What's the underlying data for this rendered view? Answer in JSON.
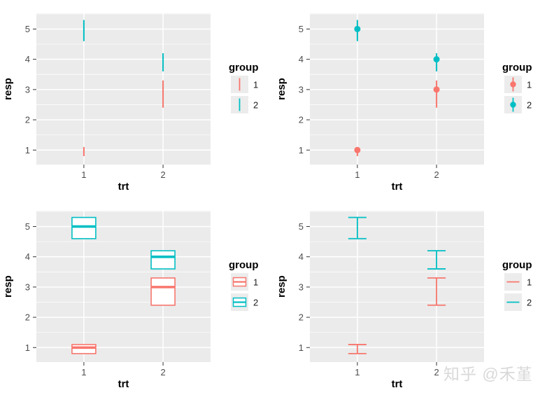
{
  "page": {
    "background": "#ffffff"
  },
  "watermark": {
    "text": "知乎 @禾堇",
    "color": "#d9d9d9"
  },
  "palette": {
    "group1": "#F8766D",
    "group2": "#00BFC4",
    "panel_bg": "#EBEBEB",
    "legend_key_bg": "#ECECEC",
    "grid": "#FFFFFF",
    "tick_mark": "#333333",
    "tick_text": "#4D4D4D",
    "title_text": "#000000",
    "crossbar_fill": "#FFFFFF"
  },
  "chart_data": [
    {
      "type": "linerange",
      "title": "",
      "xlabel": "trt",
      "ylabel": "resp",
      "x_categories": [
        "1",
        "2"
      ],
      "y_ticks": [
        "1",
        "2",
        "3",
        "4",
        "5"
      ],
      "ylim": [
        0.52,
        5.52
      ],
      "x_domain": [
        0.4,
        2.6
      ],
      "grid": "on",
      "legend": {
        "title": "group",
        "position": "right",
        "entries": [
          {
            "label": "1",
            "color": "#F8766D"
          },
          {
            "label": "2",
            "color": "#00BFC4"
          }
        ]
      },
      "points": [
        {
          "trt": "1",
          "resp": 1,
          "group": "1",
          "lower": 0.8,
          "upper": 1.1
        },
        {
          "trt": "1",
          "resp": 5,
          "group": "2",
          "lower": 4.6,
          "upper": 5.3
        },
        {
          "trt": "2",
          "resp": 3,
          "group": "1",
          "lower": 2.4,
          "upper": 3.3
        },
        {
          "trt": "2",
          "resp": 4,
          "group": "2",
          "lower": 3.6,
          "upper": 4.2
        }
      ]
    },
    {
      "type": "pointrange",
      "title": "",
      "xlabel": "trt",
      "ylabel": "resp",
      "x_categories": [
        "1",
        "2"
      ],
      "y_ticks": [
        "1",
        "2",
        "3",
        "4",
        "5"
      ],
      "ylim": [
        0.52,
        5.52
      ],
      "x_domain": [
        0.4,
        2.6
      ],
      "grid": "on",
      "legend": {
        "title": "group",
        "position": "right",
        "entries": [
          {
            "label": "1",
            "color": "#F8766D"
          },
          {
            "label": "2",
            "color": "#00BFC4"
          }
        ]
      },
      "points": [
        {
          "trt": "1",
          "resp": 1,
          "group": "1",
          "lower": 0.8,
          "upper": 1.1
        },
        {
          "trt": "1",
          "resp": 5,
          "group": "2",
          "lower": 4.6,
          "upper": 5.3
        },
        {
          "trt": "2",
          "resp": 3,
          "group": "1",
          "lower": 2.4,
          "upper": 3.3
        },
        {
          "trt": "2",
          "resp": 4,
          "group": "2",
          "lower": 3.6,
          "upper": 4.2
        }
      ]
    },
    {
      "type": "crossbar",
      "title": "",
      "xlabel": "trt",
      "ylabel": "resp",
      "x_categories": [
        "1",
        "2"
      ],
      "y_ticks": [
        "1",
        "2",
        "3",
        "4",
        "5"
      ],
      "ylim": [
        0.52,
        5.52
      ],
      "x_domain": [
        0.4,
        2.6
      ],
      "grid": "on",
      "legend": {
        "title": "group",
        "position": "right",
        "entries": [
          {
            "label": "1",
            "color": "#F8766D"
          },
          {
            "label": "2",
            "color": "#00BFC4"
          }
        ]
      },
      "points": [
        {
          "trt": "1",
          "resp": 1,
          "group": "1",
          "lower": 0.8,
          "upper": 1.1
        },
        {
          "trt": "1",
          "resp": 5,
          "group": "2",
          "lower": 4.6,
          "upper": 5.3
        },
        {
          "trt": "2",
          "resp": 3,
          "group": "1",
          "lower": 2.4,
          "upper": 3.3
        },
        {
          "trt": "2",
          "resp": 4,
          "group": "2",
          "lower": 3.6,
          "upper": 4.2
        }
      ]
    },
    {
      "type": "errorbar",
      "title": "",
      "xlabel": "trt",
      "ylabel": "resp",
      "x_categories": [
        "1",
        "2"
      ],
      "y_ticks": [
        "1",
        "2",
        "3",
        "4",
        "5"
      ],
      "ylim": [
        0.52,
        5.52
      ],
      "x_domain": [
        0.4,
        2.6
      ],
      "grid": "on",
      "legend": {
        "title": "group",
        "position": "right",
        "entries": [
          {
            "label": "1",
            "color": "#F8766D"
          },
          {
            "label": "2",
            "color": "#00BFC4"
          }
        ]
      },
      "points": [
        {
          "trt": "1",
          "resp": 1,
          "group": "1",
          "lower": 0.8,
          "upper": 1.1
        },
        {
          "trt": "1",
          "resp": 5,
          "group": "2",
          "lower": 4.6,
          "upper": 5.3
        },
        {
          "trt": "2",
          "resp": 3,
          "group": "1",
          "lower": 2.4,
          "upper": 3.3
        },
        {
          "trt": "2",
          "resp": 4,
          "group": "2",
          "lower": 3.6,
          "upper": 4.2
        }
      ]
    }
  ]
}
